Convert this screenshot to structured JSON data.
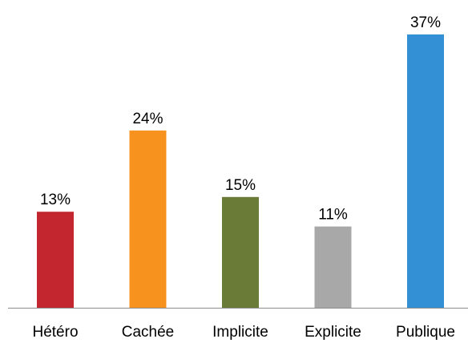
{
  "chart_data": {
    "type": "bar",
    "title": "",
    "xlabel": "",
    "ylabel": "",
    "categories": [
      "Hétéro",
      "Cachée",
      "Implicite",
      "Explicite",
      "Publique"
    ],
    "values": [
      13,
      24,
      15,
      11,
      37
    ],
    "data_labels": [
      "13%",
      "24%",
      "15%",
      "11%",
      "37%"
    ],
    "colors": [
      "#c3262f",
      "#f7921e",
      "#6a7b37",
      "#a8a8a8",
      "#3390d4"
    ],
    "ylim": [
      0,
      37
    ],
    "grid": false,
    "legend": "none"
  }
}
